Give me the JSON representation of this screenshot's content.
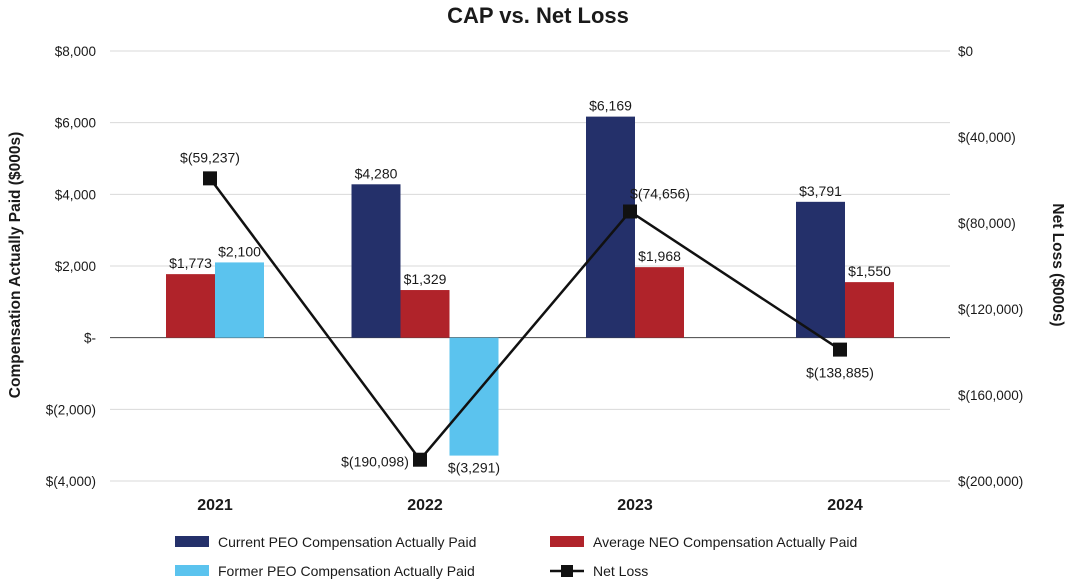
{
  "chart_data": {
    "type": "bar",
    "title": "CAP vs. Net Loss",
    "categories": [
      "2021",
      "2022",
      "2023",
      "2024"
    ],
    "ylabel": "Compensation Actually Paid ($000s)",
    "y2label": "Net Loss ($000s)",
    "ylim": [
      -4000,
      8000
    ],
    "y2lim": [
      -200000,
      0
    ],
    "yticks": [
      8000,
      6000,
      4000,
      2000,
      0,
      -2000,
      -4000
    ],
    "ytick_labels": [
      "$8,000",
      "$6,000",
      "$4,000",
      "$2,000",
      "$-",
      "$(2,000)",
      "$(4,000)"
    ],
    "y2tick_labels": [
      "$0",
      "$(40,000)",
      "$(80,000)",
      "$(120,000)",
      "$(160,000)",
      "$(200,000)"
    ],
    "grid": true,
    "legend_position": "bottom",
    "series": [
      {
        "name": "Current PEO Compensation Actually Paid",
        "kind": "bar",
        "color": "#24306a",
        "values": [
          null,
          4280,
          6169,
          3791
        ],
        "labels": [
          "",
          "$4,280",
          "$6,169",
          "$3,791"
        ]
      },
      {
        "name": "Average NEO Compensation Actually Paid",
        "kind": "bar",
        "color": "#b0232a",
        "values": [
          1773,
          1329,
          1968,
          1550
        ],
        "labels": [
          "$1,773",
          "$1,329",
          "$1,968",
          "$1,550"
        ]
      },
      {
        "name": "Former PEO Compensation Actually Paid",
        "kind": "bar",
        "color": "#5bc3ee",
        "values": [
          2100,
          -3291,
          null,
          null
        ],
        "labels": [
          "$2,100",
          "$(3,291)",
          "",
          ""
        ]
      },
      {
        "name": "Net Loss",
        "kind": "line",
        "axis": "right",
        "color": "#111111",
        "values": [
          -59237,
          -190098,
          -74656,
          -138885
        ],
        "labels": [
          "$(59,237)",
          "$(190,098)",
          "$(74,656)",
          "$(138,885)"
        ]
      }
    ]
  }
}
